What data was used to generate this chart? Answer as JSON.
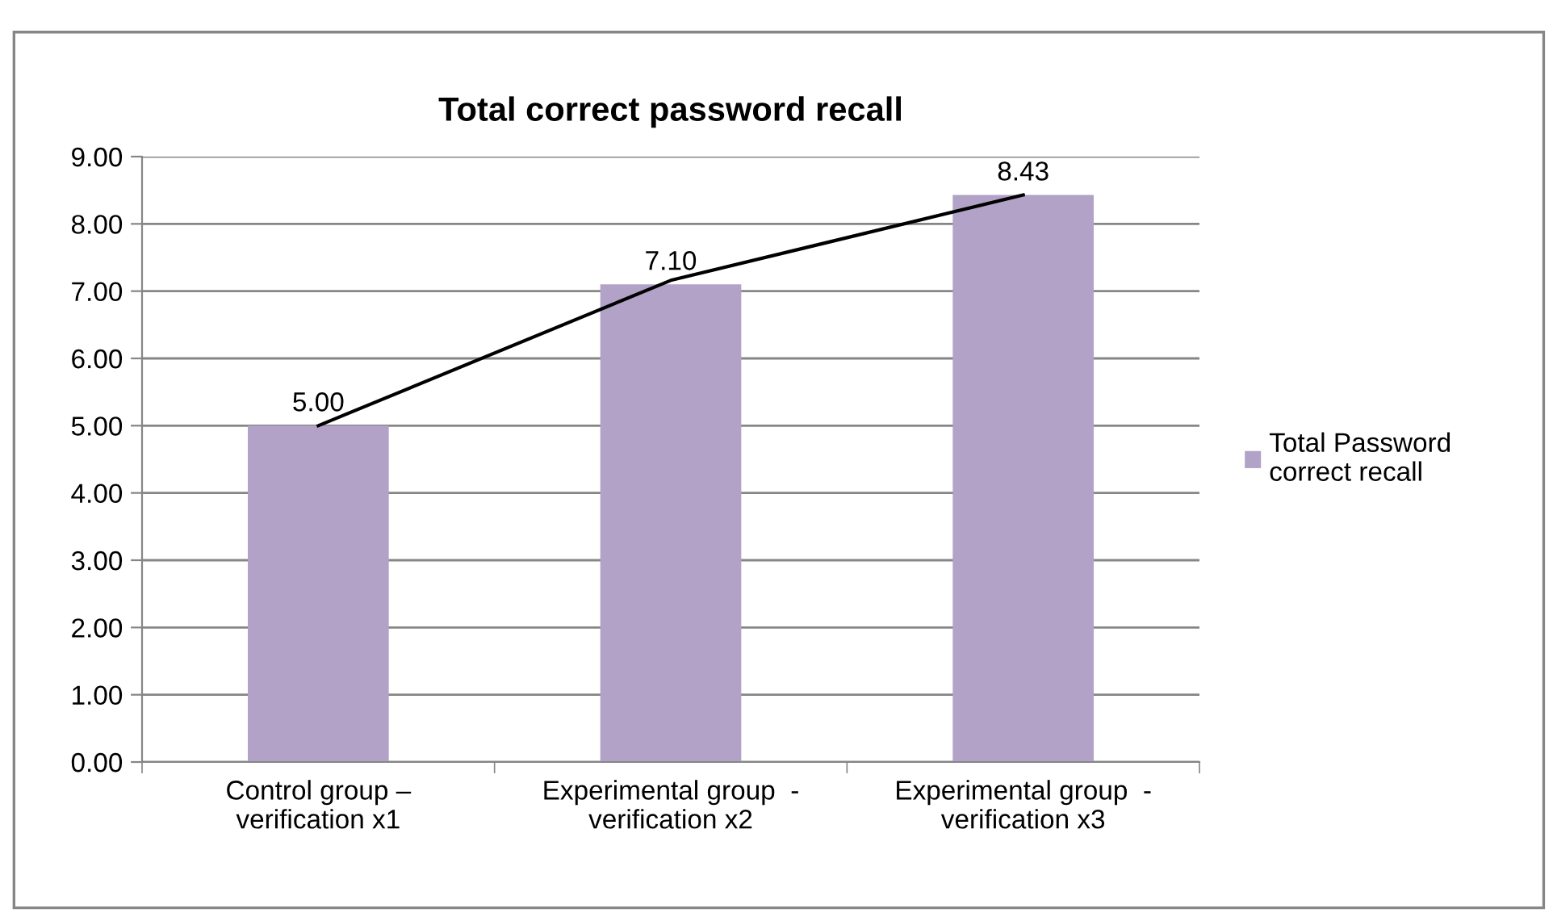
{
  "chart_data": {
    "type": "bar",
    "title": "Total correct password recall",
    "categories": [
      "Control group –\nverification x1",
      "Experimental group  -\nverification x2",
      "Experimental group  -\nverification x3"
    ],
    "series": [
      {
        "name": "Total Password\ncorrect recall",
        "color": "#b2a2c7",
        "values": [
          5.0,
          7.1,
          8.43
        ],
        "value_labels": [
          "5.00",
          "7.10",
          "8.43"
        ]
      },
      {
        "type": "line",
        "color": "#000000",
        "x": [
          "Control group –\nverification x1",
          "Experimental group  -\nverification x2",
          "Experimental group  -\nverification x3"
        ],
        "values": [
          5.0,
          7.16,
          8.43
        ]
      }
    ],
    "ylim": [
      0,
      9
    ],
    "yticks": [
      {
        "value": 0,
        "label": "0.00"
      },
      {
        "value": 1,
        "label": "1.00"
      },
      {
        "value": 2,
        "label": "2.00"
      },
      {
        "value": 3,
        "label": "3.00"
      },
      {
        "value": 4,
        "label": "4.00"
      },
      {
        "value": 5,
        "label": "5.00"
      },
      {
        "value": 6,
        "label": "6.00"
      },
      {
        "value": 7,
        "label": "7.00"
      },
      {
        "value": 8,
        "label": "8.00"
      },
      {
        "value": 9,
        "label": "9.00"
      }
    ],
    "grid": "y",
    "legend": "right"
  }
}
